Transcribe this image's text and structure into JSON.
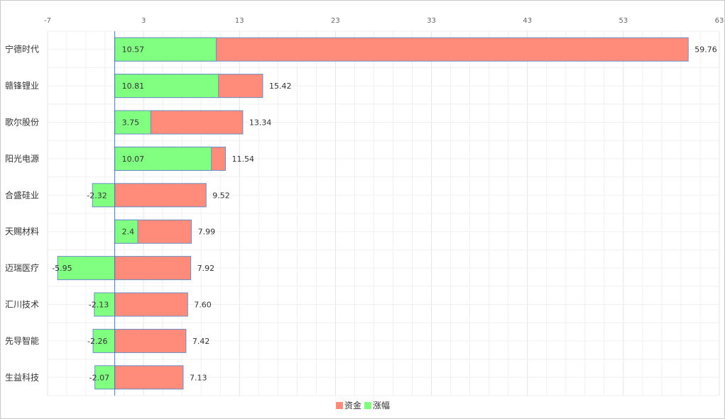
{
  "chart_data": {
    "type": "bar",
    "orientation": "horizontal",
    "categories": [
      "宁德时代",
      "赣锋锂业",
      "歌尔股份",
      "阳光电源",
      "合盛硅业",
      "天赐材料",
      "迈瑞医疗",
      "汇川技术",
      "先导智能",
      "生益科技"
    ],
    "series": [
      {
        "name": "资金",
        "color": "#ff8c7a",
        "values": [
          59.76,
          15.42,
          13.34,
          11.54,
          9.52,
          7.99,
          7.92,
          7.6,
          7.42,
          7.13
        ],
        "labels": [
          "59.76",
          "15.42",
          "13.34",
          "11.54",
          "9.52",
          "7.99",
          "7.92",
          "7.60",
          "7.42",
          "7.13"
        ]
      },
      {
        "name": "涨幅",
        "color": "#80ff80",
        "values": [
          10.57,
          10.81,
          3.75,
          10.07,
          -2.32,
          2.4,
          -5.95,
          -2.13,
          -2.26,
          -2.07
        ],
        "labels": [
          "10.57",
          "10.81",
          "3.75",
          "10.07",
          "-2.32",
          "2.4",
          "-5.95",
          "-2.13",
          "-2.26",
          "-2.07"
        ]
      }
    ],
    "xlim": [
      -7,
      63
    ],
    "xticks": [
      "-7",
      "3",
      "13",
      "23",
      "33",
      "43",
      "53",
      "63"
    ],
    "grid": true,
    "legend": "bottom-center",
    "title": "",
    "xlabel": "",
    "ylabel": ""
  }
}
